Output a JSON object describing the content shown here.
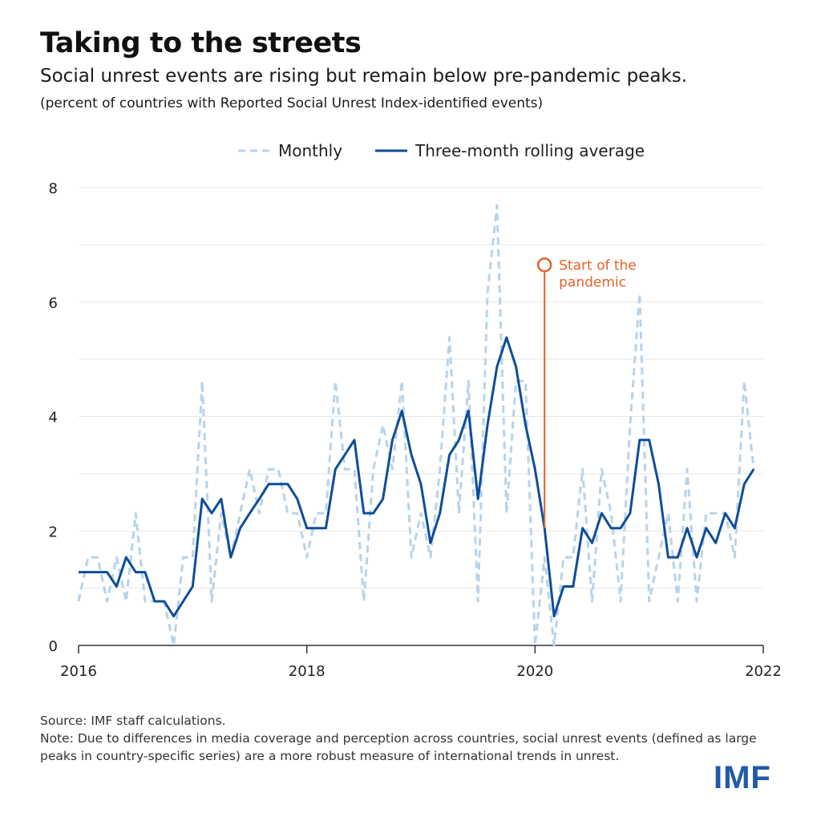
{
  "title": "Taking to the streets",
  "subtitle": "Social unrest events are rising but remain below pre-pandemic peaks.",
  "units": "(percent of countries with Reported Social Unrest Index-identified events)",
  "source": "Source: IMF staff calculations.",
  "note": "Note: Due to differences in media coverage and perception across countries, social unrest events (defined as large peaks in country-specific series) are a more robust measure of international trends in unrest.",
  "logo": "IMF",
  "colors": {
    "monthly": "#b8d3ea",
    "rolling": "#0d4d9a",
    "annotation": "#e5622a",
    "grid": "#e8e8e8",
    "axis": "#333333"
  },
  "chart_data": {
    "type": "line",
    "title": "Taking to the streets",
    "xlabel": "",
    "ylabel": "",
    "ylim": [
      0,
      8
    ],
    "xlim": [
      2016,
      2022
    ],
    "yticks": [
      0,
      2,
      4,
      6,
      8
    ],
    "xticks": [
      2016,
      2018,
      2020,
      2022
    ],
    "x_start": "2016-01",
    "x_step_months": 1,
    "legend_position": "top-center",
    "series": [
      {
        "name": "Monthly",
        "style": "dashed",
        "values": [
          0.77,
          1.54,
          1.54,
          0.77,
          1.54,
          0.77,
          2.31,
          0.77,
          0.77,
          0.77,
          0,
          1.54,
          1.54,
          4.62,
          0.77,
          2.31,
          1.54,
          2.31,
          3.08,
          2.31,
          3.08,
          3.08,
          2.31,
          2.31,
          1.54,
          2.31,
          2.31,
          4.62,
          3.08,
          3.08,
          0.77,
          3.08,
          3.85,
          3.08,
          4.62,
          1.54,
          2.31,
          1.54,
          3.08,
          5.38,
          2.31,
          4.62,
          0.77,
          6.15,
          7.69,
          2.31,
          4.62,
          4.62,
          0,
          1.54,
          0,
          1.54,
          1.54,
          3.08,
          0.77,
          3.08,
          2.31,
          0.77,
          3.85,
          6.15,
          0.77,
          1.54,
          2.31,
          0.77,
          3.08,
          0.77,
          2.31,
          2.31,
          2.31,
          1.54,
          4.62,
          3.08
        ]
      },
      {
        "name": "Three-month rolling average",
        "style": "solid",
        "values": [
          1.28,
          1.28,
          1.28,
          1.28,
          1.03,
          1.54,
          1.28,
          1.28,
          0.77,
          0.77,
          0.51,
          0.77,
          1.03,
          2.56,
          2.31,
          2.56,
          1.54,
          2.05,
          2.31,
          2.56,
          2.82,
          2.82,
          2.82,
          2.56,
          2.05,
          2.05,
          2.05,
          3.08,
          3.33,
          3.59,
          2.31,
          2.31,
          2.56,
          3.59,
          4.1,
          3.33,
          2.82,
          1.79,
          2.31,
          3.33,
          3.59,
          4.1,
          2.56,
          3.85,
          4.87,
          5.38,
          4.87,
          3.85,
          3.08,
          2.05,
          0.51,
          1.03,
          1.03,
          2.05,
          1.79,
          2.31,
          2.05,
          2.05,
          2.31,
          3.59,
          3.59,
          2.82,
          1.54,
          1.54,
          2.05,
          1.54,
          2.05,
          1.79,
          2.31,
          2.05,
          2.82,
          3.08
        ]
      }
    ],
    "annotations": [
      {
        "text_lines": [
          "Start of the",
          "pandemic"
        ],
        "x": 2020.083,
        "y_top": 6.65
      }
    ]
  }
}
